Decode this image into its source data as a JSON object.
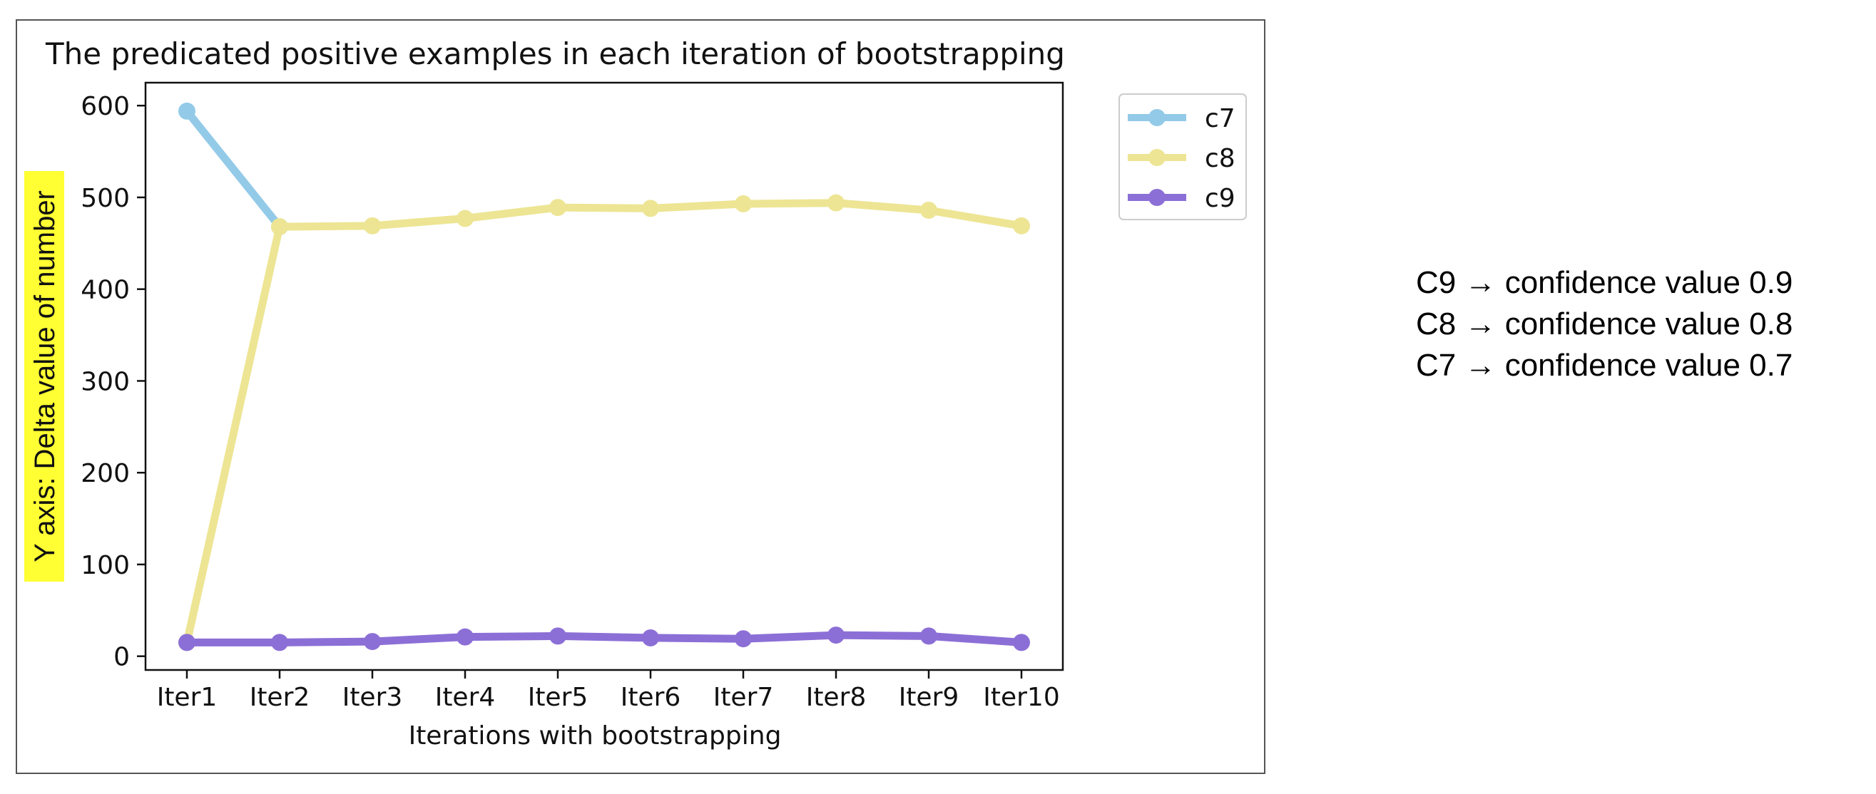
{
  "chart_data": {
    "type": "line",
    "title": "The predicated positive examples in each iteration of bootstrapping",
    "xlabel": "Iterations with bootstrapping",
    "ylabel": "Y axis: Delta value of number",
    "categories": [
      "Iter1",
      "Iter2",
      "Iter3",
      "Iter4",
      "Iter5",
      "Iter6",
      "Iter7",
      "Iter8",
      "Iter9",
      "Iter10"
    ],
    "yticks": [
      0,
      100,
      200,
      300,
      400,
      500,
      600
    ],
    "ylim": [
      -15,
      625
    ],
    "series": [
      {
        "name": "c7",
        "color": "#93cae8",
        "values": [
          594,
          468,
          null,
          null,
          null,
          null,
          null,
          null,
          null,
          null
        ]
      },
      {
        "name": "c8",
        "color": "#ede594",
        "values": [
          15,
          468,
          469,
          477,
          489,
          488,
          493,
          494,
          486,
          469
        ]
      },
      {
        "name": "c9",
        "color": "#8c6fd6",
        "values": [
          15,
          15,
          16,
          21,
          22,
          20,
          19,
          23,
          22,
          15
        ]
      }
    ],
    "legend": "top-right",
    "grid": false,
    "ylabel_highlight": "#ffff33"
  },
  "notes": [
    "C9 → confidence value 0.9",
    "C8 → confidence value 0.8",
    "C7 → confidence value 0.7"
  ]
}
